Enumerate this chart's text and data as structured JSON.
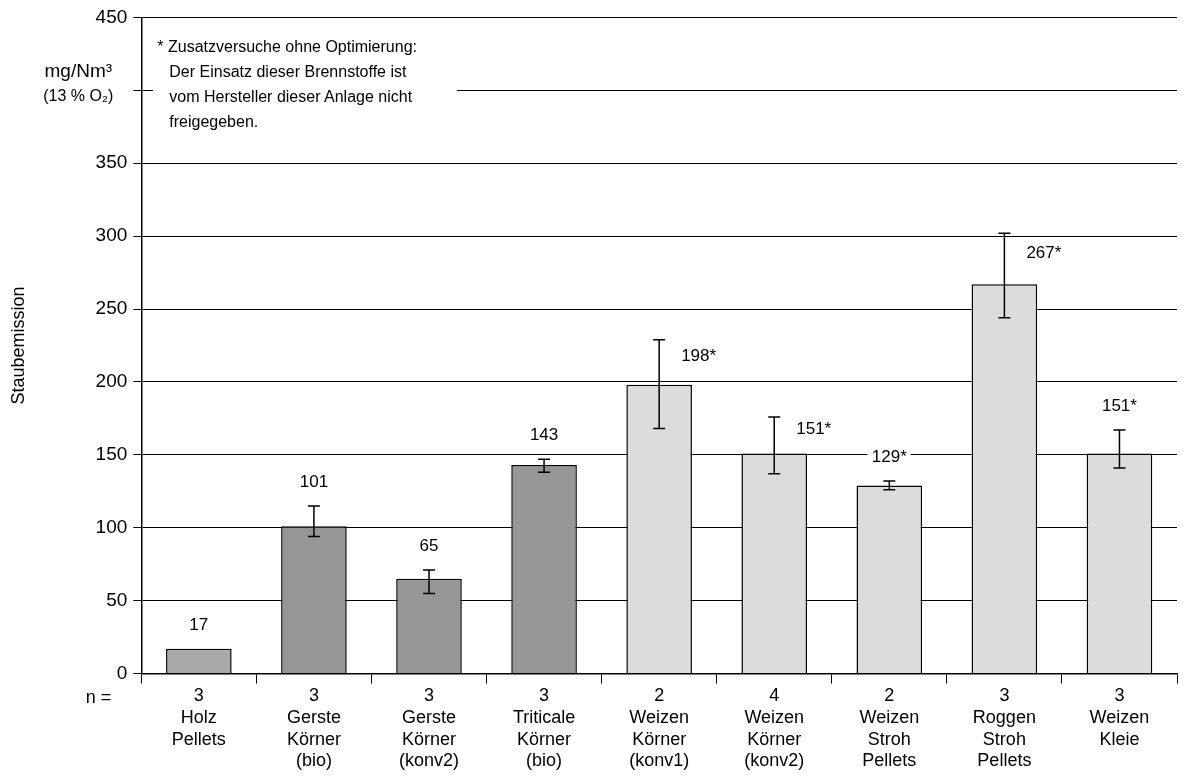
{
  "chart_data": {
    "type": "bar",
    "ylabel": "Staubemission",
    "categories": [
      "3\nHolz\nPellets",
      "3\nGerste\nKörner\n(bio)",
      "3\nGerste\nKörner\n(konv2)",
      "3\nTriticale\nKörner\n(bio)",
      "2\nWeizen\nKörner\n(konv1)",
      "4\nWeizen\nKörner\n(konv2)",
      "2\nWeizen\nStroh\nPellets",
      "3\nRoggen\nStroh\nPellets",
      "3\nWeizen\nKleie"
    ],
    "values": [
      17,
      101,
      65,
      143,
      198,
      151,
      129,
      267,
      151
    ],
    "colors": [
      "#a8a8a8",
      "#969696",
      "#969696",
      "#969696",
      "#dcdcdc",
      "#dcdcdc",
      "#dcdcdc",
      "#dcdcdc",
      "#dcdcdc"
    ],
    "errors": [
      null,
      [
        94,
        115
      ],
      [
        55,
        71
      ],
      [
        138,
        147
      ],
      [
        168,
        229
      ],
      [
        137,
        176
      ],
      [
        126,
        132
      ],
      [
        244,
        302
      ],
      [
        141,
        167
      ]
    ],
    "value_labels": [
      "17",
      "101",
      "65",
      "143",
      "198*",
      "151*",
      "129*",
      "267*",
      "151*"
    ],
    "annotations": [
      "mg/Nm³\n(13 % O₂)",
      "* Zusatzversuche ohne Optimierung:\nDer Einsatz dieser Brennstoffe ist\nvom Hersteller dieser Anlage nicht\nfreigegeben.",
      "n ="
    ],
    "ylim": [
      0,
      450
    ],
    "yticks": [
      0,
      50,
      100,
      150,
      200,
      250,
      300,
      350,
      {
        "value": 400,
        "label": null
      },
      450
    ],
    "grid": "y",
    "legend": false
  }
}
